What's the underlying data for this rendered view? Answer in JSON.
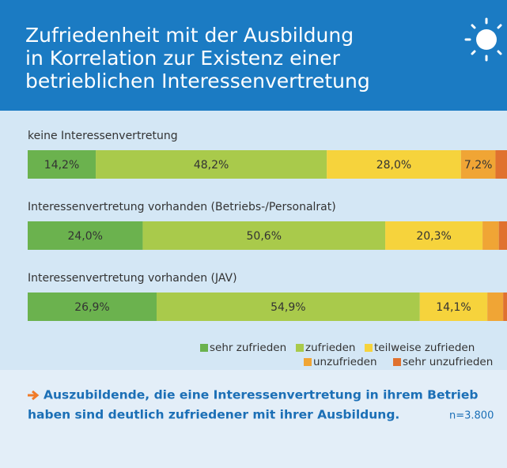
{
  "chart_data": {
    "type": "stacked_bar_horizontal",
    "title": [
      "Zufriedenheit mit der Ausbildung",
      "in Korrelation zur Existenz einer",
      "betrieblichen Interessenvertretung"
    ],
    "categories": [
      "keine Interessenvertretung",
      "Interessenvertretung vorhanden (Betriebs-/Personalrat)",
      "Interessenvertretung vorhanden (JAV)"
    ],
    "xlim": [
      0,
      100
    ],
    "series": [
      {
        "name": "sehr zufrieden",
        "color": "#6bb24e",
        "values": [
          14.2,
          24.0,
          26.9
        ],
        "value_labels": [
          "14,2%",
          "24,0%",
          "26,9%"
        ]
      },
      {
        "name": "zufrieden",
        "color": "#a9ca4b",
        "values": [
          48.2,
          50.6,
          54.9
        ],
        "value_labels": [
          "48,2%",
          "50,6%",
          "54,9%"
        ]
      },
      {
        "name": "teilweise zufrieden",
        "color": "#f6d33c",
        "values": [
          28.0,
          20.3,
          14.1
        ],
        "value_labels": [
          "28,0%",
          "20,3%",
          "14,1%"
        ]
      },
      {
        "name": "unzufrieden",
        "color": "#f0a535",
        "values": [
          7.2,
          3.4,
          3.3
        ],
        "value_labels": [
          "7,2%",
          null,
          null
        ]
      },
      {
        "name": "sehr unzufrieden",
        "color": "#e0722f",
        "values": [
          2.4,
          1.7,
          0.8
        ],
        "value_labels": [
          null,
          null,
          null
        ]
      }
    ],
    "annotation": [
      "Auszubildende, die eine Interessenvertretung in ihrem Betrieb",
      "haben sind deutlich zufriedener mit ihrer Ausbildung."
    ],
    "note": "n=3.800"
  }
}
